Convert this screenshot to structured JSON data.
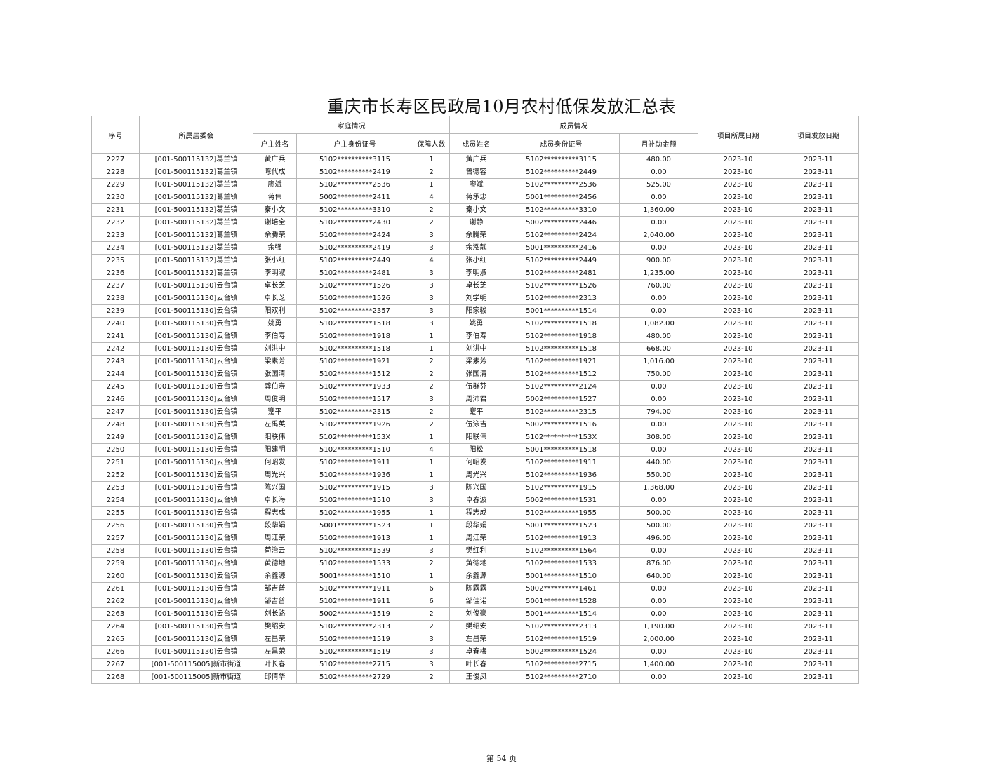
{
  "title": "重庆市长寿区民政局10月农村低保发放汇总表",
  "headers": {
    "seq": "序号",
    "committee": "所属居委会",
    "family_group": "家庭情况",
    "member_group": "成员情况",
    "head_name": "户主姓名",
    "head_id": "户主身份证号",
    "count": "保障人数",
    "member_name": "成员姓名",
    "member_id": "成员身份证号",
    "amount": "月补助金额",
    "period": "项目所属日期",
    "pay_date": "项目发放日期"
  },
  "rows": [
    [
      "2227",
      "[001-500115132]葛兰镇",
      "黄广兵",
      "5102**********3115",
      "1",
      "黄广兵",
      "5102**********3115",
      "480.00",
      "2023-10",
      "2023-11"
    ],
    [
      "2228",
      "[001-500115132]葛兰镇",
      "陈代成",
      "5102**********2419",
      "2",
      "曾德容",
      "5102**********2449",
      "0.00",
      "2023-10",
      "2023-11"
    ],
    [
      "2229",
      "[001-500115132]葛兰镇",
      "廖斌",
      "5102**********2536",
      "1",
      "廖斌",
      "5102**********2536",
      "525.00",
      "2023-10",
      "2023-11"
    ],
    [
      "2230",
      "[001-500115132]葛兰镇",
      "蒋伟",
      "5002**********2411",
      "4",
      "蒋承忠",
      "5001**********2456",
      "0.00",
      "2023-10",
      "2023-11"
    ],
    [
      "2231",
      "[001-500115132]葛兰镇",
      "秦小文",
      "5102**********3310",
      "2",
      "秦小文",
      "5102**********3310",
      "1,360.00",
      "2023-10",
      "2023-11"
    ],
    [
      "2232",
      "[001-500115132]葛兰镇",
      "谢培全",
      "5102**********2430",
      "2",
      "谢静",
      "5002**********2446",
      "0.00",
      "2023-10",
      "2023-11"
    ],
    [
      "2233",
      "[001-500115132]葛兰镇",
      "余腾荣",
      "5102**********2424",
      "3",
      "余腾荣",
      "5102**********2424",
      "2,040.00",
      "2023-10",
      "2023-11"
    ],
    [
      "2234",
      "[001-500115132]葛兰镇",
      "余强",
      "5102**********2419",
      "3",
      "余泓靓",
      "5001**********2416",
      "0.00",
      "2023-10",
      "2023-11"
    ],
    [
      "2235",
      "[001-500115132]葛兰镇",
      "张小红",
      "5102**********2449",
      "4",
      "张小红",
      "5102**********2449",
      "900.00",
      "2023-10",
      "2023-11"
    ],
    [
      "2236",
      "[001-500115132]葛兰镇",
      "李明淑",
      "5102**********2481",
      "3",
      "李明淑",
      "5102**********2481",
      "1,235.00",
      "2023-10",
      "2023-11"
    ],
    [
      "2237",
      "[001-500115130]云台镇",
      "卓长芝",
      "5102**********1526",
      "3",
      "卓长芝",
      "5102**********1526",
      "760.00",
      "2023-10",
      "2023-11"
    ],
    [
      "2238",
      "[001-500115130]云台镇",
      "卓长芝",
      "5102**********1526",
      "3",
      "刘学明",
      "5102**********2313",
      "0.00",
      "2023-10",
      "2023-11"
    ],
    [
      "2239",
      "[001-500115130]云台镇",
      "阳双利",
      "5102**********2357",
      "3",
      "阳家骏",
      "5001**********1514",
      "0.00",
      "2023-10",
      "2023-11"
    ],
    [
      "2240",
      "[001-500115130]云台镇",
      "姚勇",
      "5102**********1518",
      "3",
      "姚勇",
      "5102**********1518",
      "1,082.00",
      "2023-10",
      "2023-11"
    ],
    [
      "2241",
      "[001-500115130]云台镇",
      "李伯寿",
      "5102**********1918",
      "1",
      "李伯寿",
      "5102**********1918",
      "480.00",
      "2023-10",
      "2023-11"
    ],
    [
      "2242",
      "[001-500115130]云台镇",
      "刘洪中",
      "5102**********1518",
      "1",
      "刘洪中",
      "5102**********1518",
      "668.00",
      "2023-10",
      "2023-11"
    ],
    [
      "2243",
      "[001-500115130]云台镇",
      "梁素芳",
      "5102**********1921",
      "2",
      "梁素芳",
      "5102**********1921",
      "1,016.00",
      "2023-10",
      "2023-11"
    ],
    [
      "2244",
      "[001-500115130]云台镇",
      "张国清",
      "5102**********1512",
      "2",
      "张国清",
      "5102**********1512",
      "750.00",
      "2023-10",
      "2023-11"
    ],
    [
      "2245",
      "[001-500115130]云台镇",
      "龚伯寿",
      "5102**********1933",
      "2",
      "伍群芬",
      "5102**********2124",
      "0.00",
      "2023-10",
      "2023-11"
    ],
    [
      "2246",
      "[001-500115130]云台镇",
      "周俊明",
      "5102**********1517",
      "3",
      "周沛君",
      "5002**********1527",
      "0.00",
      "2023-10",
      "2023-11"
    ],
    [
      "2247",
      "[001-500115130]云台镇",
      "蹇平",
      "5102**********2315",
      "2",
      "蹇平",
      "5102**********2315",
      "794.00",
      "2023-10",
      "2023-11"
    ],
    [
      "2248",
      "[001-500115130]云台镇",
      "左禹英",
      "5102**********1926",
      "2",
      "伍泳吉",
      "5002**********1516",
      "0.00",
      "2023-10",
      "2023-11"
    ],
    [
      "2249",
      "[001-500115130]云台镇",
      "阳联伟",
      "5102**********153X",
      "1",
      "阳联伟",
      "5102**********153X",
      "308.00",
      "2023-10",
      "2023-11"
    ],
    [
      "2250",
      "[001-500115130]云台镇",
      "阳建明",
      "5102**********1510",
      "4",
      "阳松",
      "5001**********1518",
      "0.00",
      "2023-10",
      "2023-11"
    ],
    [
      "2251",
      "[001-500115130]云台镇",
      "何昭发",
      "5102**********1911",
      "1",
      "何昭发",
      "5102**********1911",
      "440.00",
      "2023-10",
      "2023-11"
    ],
    [
      "2252",
      "[001-500115130]云台镇",
      "周光兴",
      "5102**********1936",
      "1",
      "周光兴",
      "5102**********1936",
      "550.00",
      "2023-10",
      "2023-11"
    ],
    [
      "2253",
      "[001-500115130]云台镇",
      "陈兴国",
      "5102**********1915",
      "3",
      "陈兴国",
      "5102**********1915",
      "1,368.00",
      "2023-10",
      "2023-11"
    ],
    [
      "2254",
      "[001-500115130]云台镇",
      "卓长海",
      "5102**********1510",
      "3",
      "卓春波",
      "5002**********1531",
      "0.00",
      "2023-10",
      "2023-11"
    ],
    [
      "2255",
      "[001-500115130]云台镇",
      "程志成",
      "5102**********1955",
      "1",
      "程志成",
      "5102**********1955",
      "500.00",
      "2023-10",
      "2023-11"
    ],
    [
      "2256",
      "[001-500115130]云台镇",
      "段华娟",
      "5001**********1523",
      "1",
      "段华娟",
      "5001**********1523",
      "500.00",
      "2023-10",
      "2023-11"
    ],
    [
      "2257",
      "[001-500115130]云台镇",
      "周江荣",
      "5102**********1913",
      "1",
      "周江荣",
      "5102**********1913",
      "496.00",
      "2023-10",
      "2023-11"
    ],
    [
      "2258",
      "[001-500115130]云台镇",
      "苟治云",
      "5102**********1539",
      "3",
      "樊红利",
      "5102**********1564",
      "0.00",
      "2023-10",
      "2023-11"
    ],
    [
      "2259",
      "[001-500115130]云台镇",
      "黄德地",
      "5102**********1533",
      "2",
      "黄德地",
      "5102**********1533",
      "876.00",
      "2023-10",
      "2023-11"
    ],
    [
      "2260",
      "[001-500115130]云台镇",
      "余鑫源",
      "5001**********1510",
      "1",
      "余鑫源",
      "5001**********1510",
      "640.00",
      "2023-10",
      "2023-11"
    ],
    [
      "2261",
      "[001-500115130]云台镇",
      "邹吉普",
      "5102**********1911",
      "6",
      "陈露露",
      "5002**********1461",
      "0.00",
      "2023-10",
      "2023-11"
    ],
    [
      "2262",
      "[001-500115130]云台镇",
      "邹吉普",
      "5102**********1911",
      "6",
      "邹佳诺",
      "5001**********1528",
      "0.00",
      "2023-10",
      "2023-11"
    ],
    [
      "2263",
      "[001-500115130]云台镇",
      "刘长路",
      "5002**********1519",
      "2",
      "刘俊豪",
      "5001**********1514",
      "0.00",
      "2023-10",
      "2023-11"
    ],
    [
      "2264",
      "[001-500115130]云台镇",
      "樊绍安",
      "5102**********2313",
      "2",
      "樊绍安",
      "5102**********2313",
      "1,190.00",
      "2023-10",
      "2023-11"
    ],
    [
      "2265",
      "[001-500115130]云台镇",
      "左昌荣",
      "5102**********1519",
      "3",
      "左昌荣",
      "5102**********1519",
      "2,000.00",
      "2023-10",
      "2023-11"
    ],
    [
      "2266",
      "[001-500115130]云台镇",
      "左昌荣",
      "5102**********1519",
      "3",
      "卓春梅",
      "5002**********1524",
      "0.00",
      "2023-10",
      "2023-11"
    ],
    [
      "2267",
      "[001-500115005]新市街道",
      "叶长春",
      "5102**********2715",
      "3",
      "叶长春",
      "5102**********2715",
      "1,400.00",
      "2023-10",
      "2023-11"
    ],
    [
      "2268",
      "[001-500115005]新市街道",
      "邱倩华",
      "5102**********2729",
      "2",
      "王俊凤",
      "5102**********2710",
      "0.00",
      "2023-10",
      "2023-11"
    ]
  ],
  "footer": "第 54 页"
}
